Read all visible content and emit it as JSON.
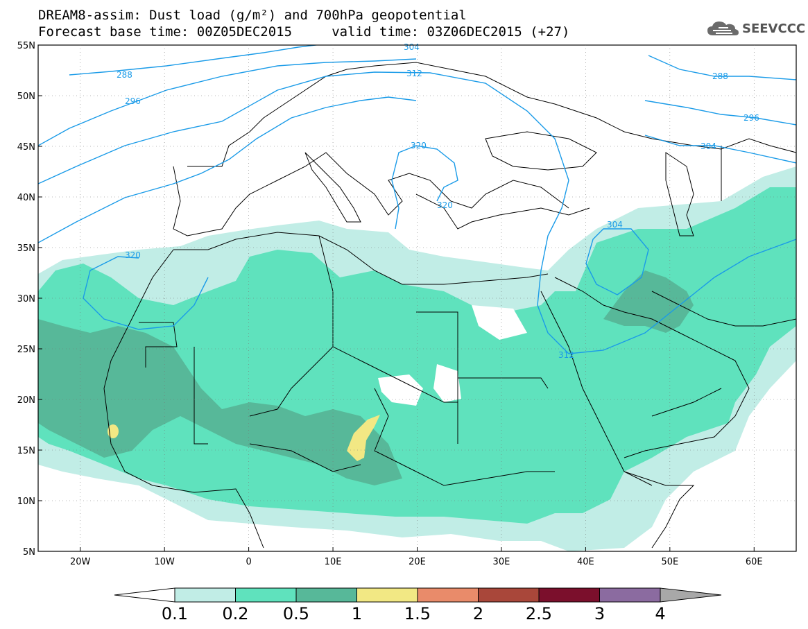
{
  "header": {
    "title_line1": "DREAM8-assim: Dust load (g/m²) and 700hPa geopotential",
    "title_line2": "Forecast base time: 00Z05DEC2015     valid time: 03Z06DEC2015 (+27)"
  },
  "logo": {
    "text": "SEEVCCC",
    "icon": "cloud-icon"
  },
  "map": {
    "lon_ticks": [
      "20W",
      "10W",
      "0",
      "10E",
      "20E",
      "30E",
      "40E",
      "50E",
      "60E"
    ],
    "lat_ticks": [
      "55N",
      "50N",
      "45N",
      "40N",
      "35N",
      "30N",
      "25N",
      "20N",
      "15N",
      "10N",
      "5N"
    ],
    "lon_range": [
      -25,
      65
    ],
    "lat_range": [
      5,
      55
    ],
    "contour_labels": [
      "288",
      "296",
      "304",
      "312",
      "320",
      "288",
      "296",
      "304",
      "320",
      "320",
      "304",
      "312"
    ]
  },
  "legend": {
    "labels": [
      "0.1",
      "0.2",
      "0.5",
      "1",
      "1.5",
      "2",
      "2.5",
      "3",
      "4"
    ],
    "colors": [
      "#c1ede6",
      "#5fe2bd",
      "#57b899",
      "#f2e884",
      "#e98b6a",
      "#a9473a",
      "#7b0f2c",
      "#8b6ba0",
      "#a8a8a8"
    ]
  },
  "colors": {
    "contour": "#1a9be8",
    "dust_0_1": "#c1ede6",
    "dust_0_2": "#5fe2bd",
    "dust_0_5": "#57b899",
    "dust_1": "#f2e884"
  }
}
